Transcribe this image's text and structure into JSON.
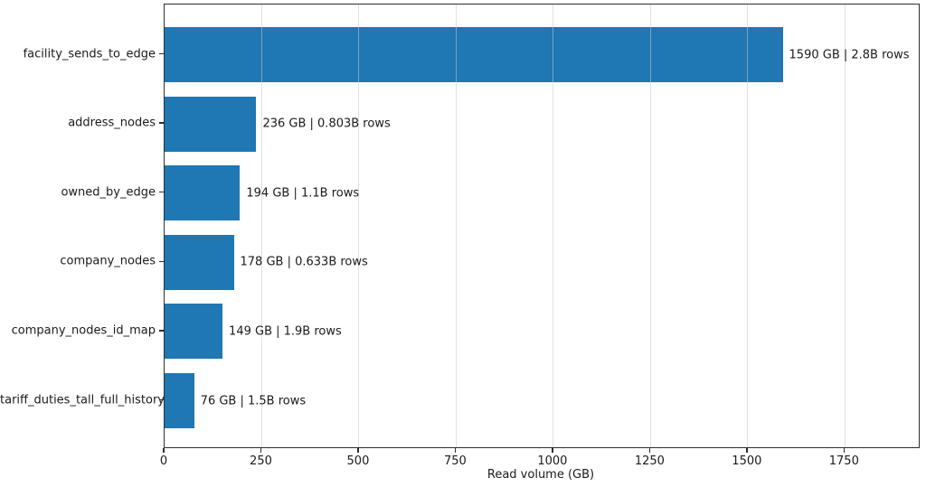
{
  "chart_data": {
    "type": "bar",
    "orientation": "horizontal",
    "title": "",
    "xlabel": "Read volume (GB)",
    "ylabel": "",
    "categories": [
      "facility_sends_to_edge",
      "address_nodes",
      "owned_by_edge",
      "company_nodes",
      "company_nodes_id_map",
      "tariff_duties_tall_full_history"
    ],
    "values": [
      1590,
      236,
      194,
      178,
      149,
      76
    ],
    "rows_billions": [
      2.8,
      0.803,
      1.1,
      0.633,
      1.9,
      1.5
    ],
    "bar_labels": [
      "1590 GB | 2.8B rows",
      "236 GB | 0.803B rows",
      "194 GB | 1.1B rows",
      "178 GB | 0.633B rows",
      "149 GB | 1.9B rows",
      "76 GB | 1.5B rows"
    ],
    "xticks": [
      0,
      250,
      500,
      750,
      1000,
      1250,
      1500,
      1750
    ],
    "xlim": [
      0,
      1940
    ],
    "grid": "x-only, drawn over bars, light gray",
    "legend": "none",
    "bar_color": "#1f77b4",
    "spine_color": "#2e2e2e",
    "gridline_color": "#c8c8c8",
    "background_color": "#ffffff"
  }
}
